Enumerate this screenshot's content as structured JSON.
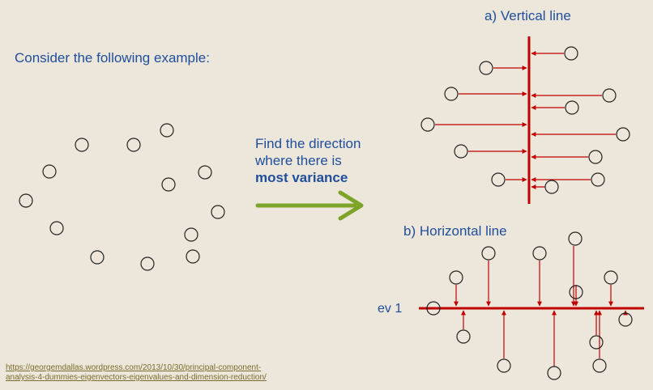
{
  "intro_text": "Consider the following example:",
  "find_line1": "Find the direction",
  "find_line2": "where there is",
  "find_bold": "most variance",
  "panel_a_title": "a) Vertical line",
  "panel_b_title": "b) Horizontal line",
  "ev_label": "ev 1",
  "source_line1": "https://georgemdallas.wordpress.com/2013/10/30/principal-component-",
  "source_line2": "analysis-4-dummies-eigenvectors-eigenvalues-and-dimension-reduction/",
  "colors": {
    "background": "#ECE7DA",
    "text": "#1F4E9C",
    "projection_red": "#C00000",
    "arrow_green": "#7BA428",
    "link": "#7A6C2E"
  }
}
